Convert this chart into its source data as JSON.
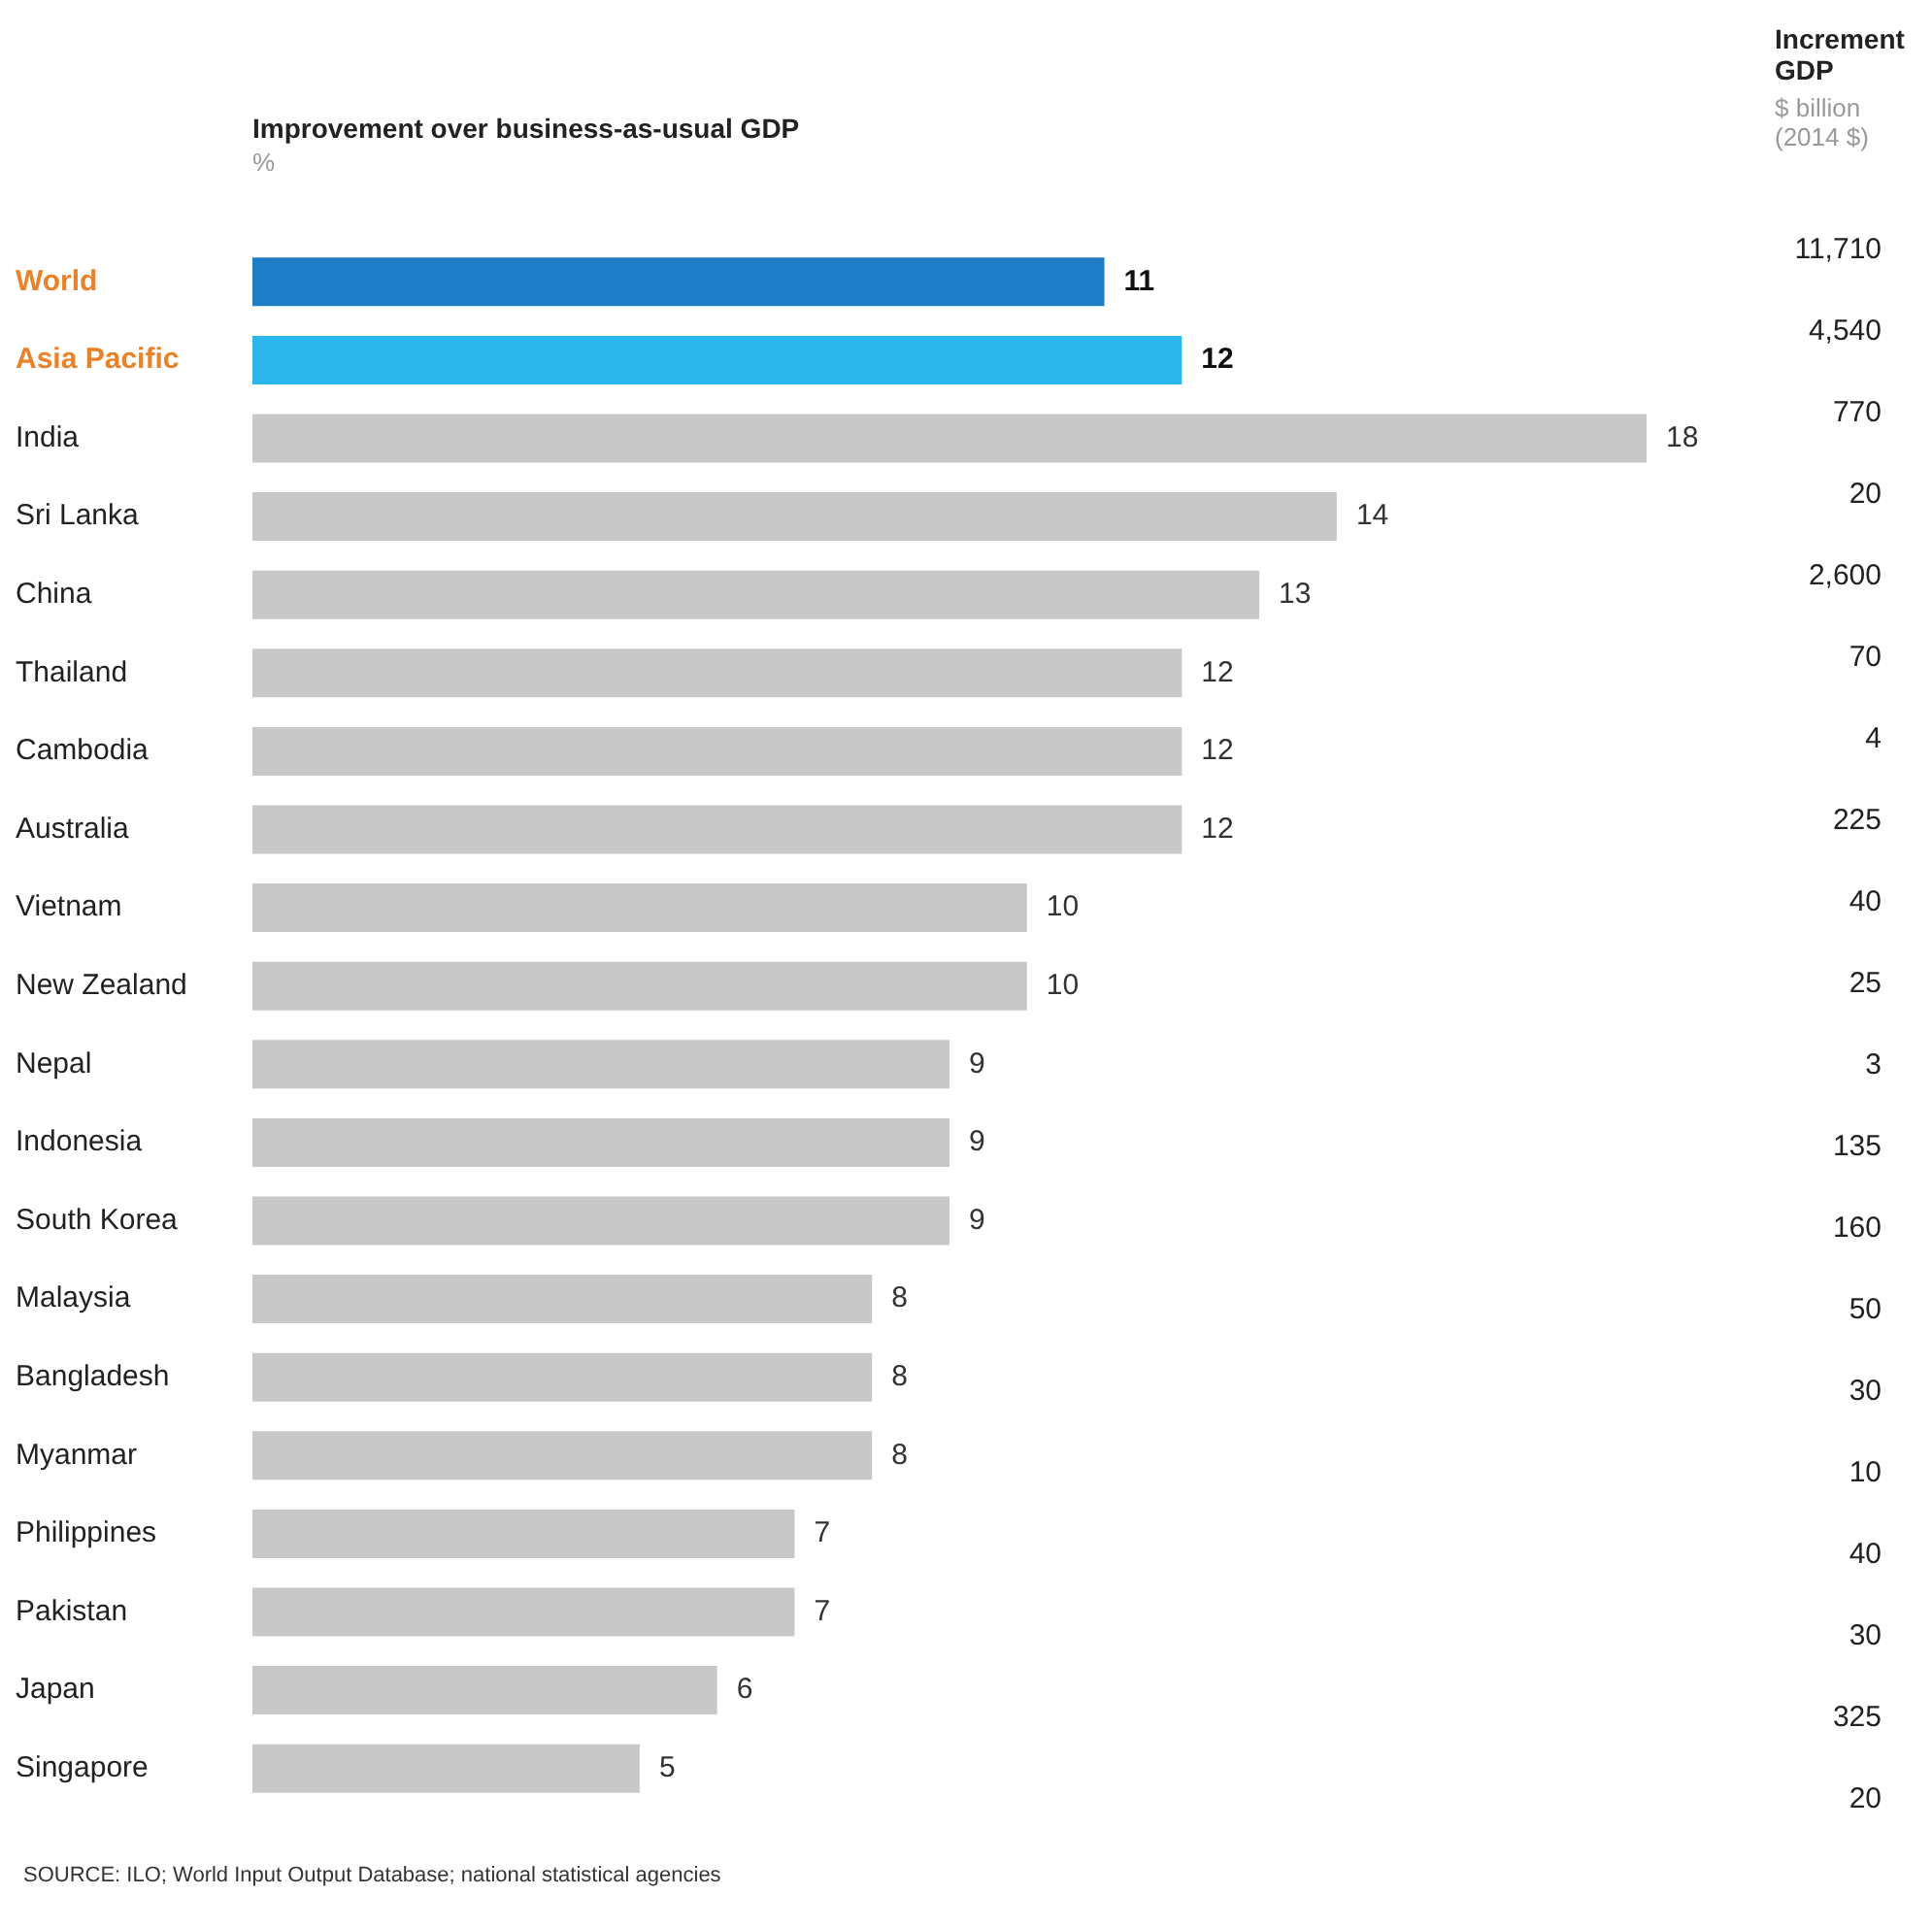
{
  "chart_data": [
    {
      "type": "bar",
      "orientation": "horizontal",
      "title": "Improvement over business-as-usual GDP",
      "subtitle": "%",
      "data_labels": true,
      "categories": [
        "World",
        "Asia Pacific",
        "India",
        "Sri Lanka",
        "China",
        "Thailand",
        "Cambodia",
        "Australia",
        "Vietnam",
        "New Zealand",
        "Nepal",
        "Indonesia",
        "South Korea",
        "Malaysia",
        "Bangladesh",
        "Myanmar",
        "Philippines",
        "Pakistan",
        "Japan",
        "Singapore"
      ],
      "values": [
        11,
        12,
        18,
        14,
        13,
        12,
        12,
        12,
        10,
        10,
        9,
        9,
        9,
        8,
        8,
        8,
        7,
        7,
        6,
        5
      ],
      "colors": [
        "#1f7cc6",
        "#2bb6ec",
        "#c8c8c8",
        "#c8c8c8",
        "#c8c8c8",
        "#c8c8c8",
        "#c8c8c8",
        "#c8c8c8",
        "#c8c8c8",
        "#c8c8c8",
        "#c8c8c8",
        "#c8c8c8",
        "#c8c8c8",
        "#c8c8c8",
        "#c8c8c8",
        "#c8c8c8",
        "#c8c8c8",
        "#c8c8c8",
        "#c8c8c8",
        "#c8c8c8"
      ],
      "annotations": [
        "SOURCE: ILO; World Input Output Database; national statistical agencies"
      ]
    },
    {
      "type": "other",
      "title": "Increment GDP",
      "subtitle": "$ billion (2014 $)",
      "values": [
        11710,
        4540,
        770,
        20,
        2600,
        70,
        4,
        225,
        40,
        25,
        3,
        135,
        160,
        50,
        30,
        10,
        40,
        30,
        325,
        20
      ],
      "value_labels": [
        "11,710",
        "4,540",
        "770",
        "20",
        "2,600",
        "70",
        "4",
        "225",
        "40",
        "25",
        "3",
        "135",
        "160",
        "50",
        "30",
        "10",
        "40",
        "30",
        "325",
        "20"
      ]
    }
  ]
}
